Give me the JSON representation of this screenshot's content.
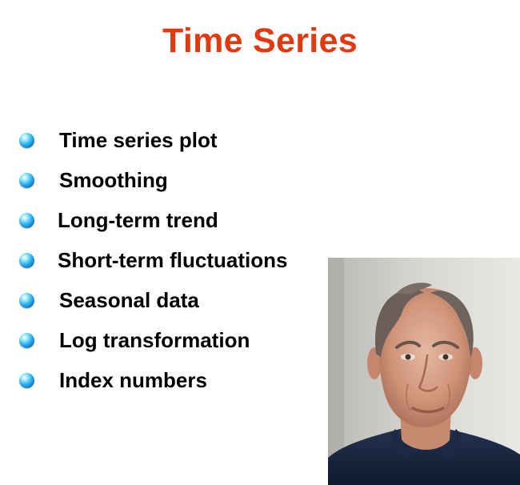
{
  "slide": {
    "title": "Time Series",
    "title_color": "#e23a10",
    "bullet_icon": "blue-sphere-icon",
    "bullets": [
      "Time series plot",
      "Smoothing",
      "Long-term trend",
      "Short-term fluctuations",
      "Seasonal data",
      "Log transformation",
      "Index numbers"
    ],
    "photo": "portrait-photo"
  }
}
